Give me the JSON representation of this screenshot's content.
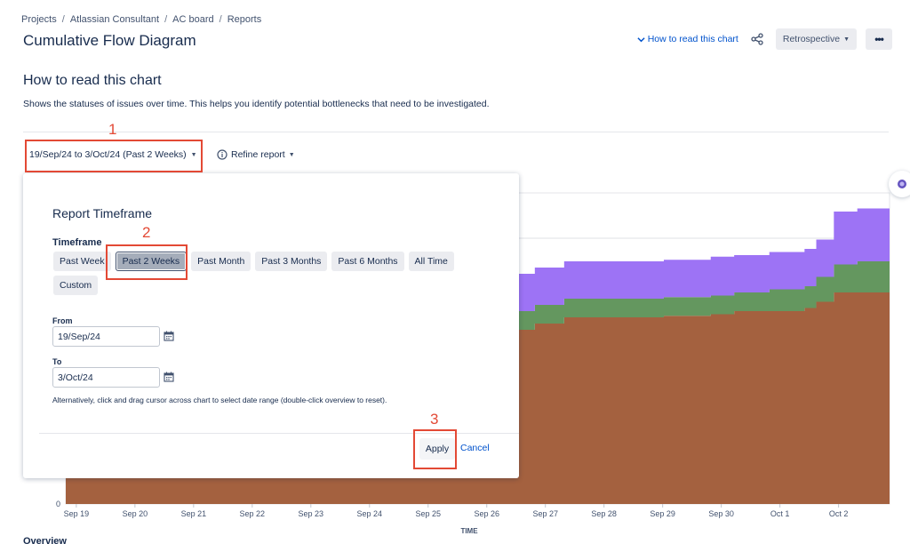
{
  "breadcrumb": [
    "Projects",
    "Atlassian Consultant",
    "AC board",
    "Reports"
  ],
  "page": {
    "title": "Cumulative Flow Diagram"
  },
  "header": {
    "howto_link": "How to read this chart",
    "board_button": "Retrospective",
    "more_label": "•••"
  },
  "section": {
    "title": "How to read this chart",
    "description": "Shows the statuses of issues over time. This helps you identify potential bottlenecks that need to be investigated."
  },
  "controls": {
    "date_range": "19/Sep/24 to 3/Oct/24 (Past 2 Weeks)",
    "refine": "Refine report"
  },
  "annotations": {
    "n1": "1",
    "n2": "2",
    "n3": "3"
  },
  "popup": {
    "title": "Report Timeframe",
    "timeframe_label": "Timeframe",
    "options": [
      "Past Week",
      "Past 2 Weeks",
      "Past Month",
      "Past 3 Months",
      "Past 6 Months",
      "All Time",
      "Custom"
    ],
    "selected": "Past 2 Weeks",
    "from_label": "From",
    "from_value": "19/Sep/24",
    "to_label": "To",
    "to_value": "3/Oct/24",
    "hint": "Alternatively, click and drag cursor across chart to select date range (double-click overview to reset).",
    "apply": "Apply",
    "cancel": "Cancel"
  },
  "overview_label": "Overview",
  "chart_data": {
    "type": "area",
    "stacked": true,
    "xlabel": "TIME",
    "ylabel": "",
    "x_ticks": [
      "Sep 19",
      "Sep 20",
      "Sep 21",
      "Sep 22",
      "Sep 23",
      "Sep 24",
      "Sep 25",
      "Sep 26",
      "Sep 27",
      "Sep 28",
      "Sep 29",
      "Sep 30",
      "Oct 1",
      "Oct 2"
    ],
    "y_ticks": [
      "0"
    ],
    "ylim": [
      0,
      100
    ],
    "colors": {
      "done": "#a4613f",
      "middle": "#64975f",
      "top": "#9d73f5"
    },
    "series": [
      {
        "color": "#a4613f",
        "x": [
          0,
          7.6,
          8.0,
          8.5,
          9.5,
          10.2,
          11.0,
          11.4,
          12.0,
          12.6,
          12.8,
          13.1,
          13.5,
          14.05
        ],
        "values": [
          56,
          56,
          58,
          60,
          60,
          60.5,
          61,
          62,
          62,
          63,
          65,
          68,
          68,
          68
        ]
      },
      {
        "color": "#64975f",
        "x": [
          0,
          7.6,
          8.0,
          8.5,
          9.5,
          10.2,
          11.0,
          11.4,
          12.0,
          12.6,
          12.8,
          13.1,
          13.5,
          14.05
        ],
        "values": [
          6,
          6,
          6,
          6,
          6,
          6,
          6,
          6,
          7,
          7,
          8,
          9,
          10,
          10
        ]
      },
      {
        "color": "#9d73f5",
        "x": [
          0,
          7.6,
          8.0,
          8.5,
          9.5,
          10.2,
          11.0,
          11.4,
          12.0,
          12.6,
          12.8,
          13.1,
          13.5,
          14.05
        ],
        "values": [
          12,
          12,
          12,
          12,
          12,
          12,
          12.5,
          12,
          12,
          12,
          12,
          17,
          17,
          17
        ]
      }
    ]
  }
}
